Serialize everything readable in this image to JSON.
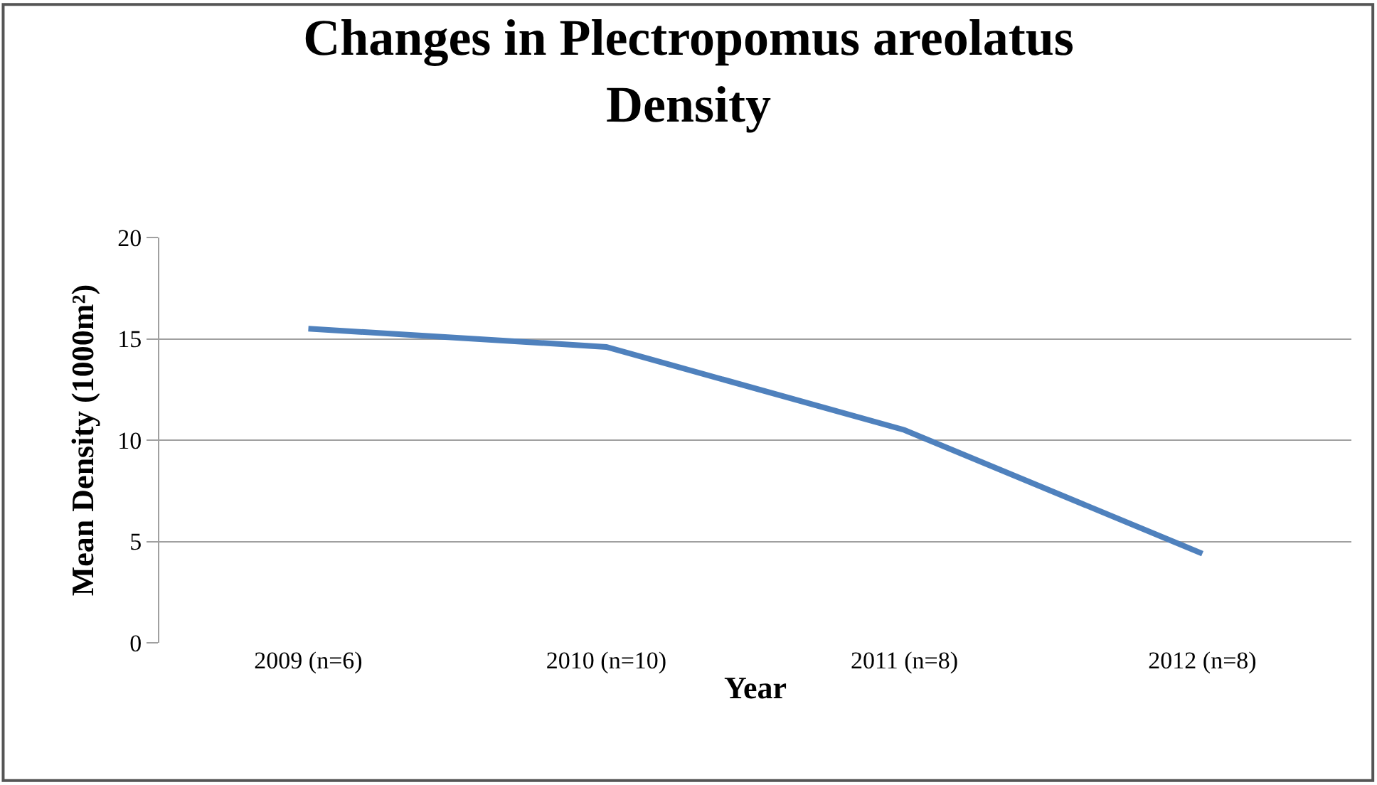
{
  "chart_data": {
    "type": "line",
    "title": "Changes in Plectropomus areolatus Density",
    "xlabel": "Year",
    "ylabel": "Mean Density (1000m²)",
    "categories": [
      "2009 (n=6)",
      "2010 (n=10)",
      "2011 (n=8)",
      "2012 (n=8)"
    ],
    "series": [
      {
        "color": "#4f81bd",
        "values": [
          15.5,
          14.6,
          10.5,
          4.4
        ]
      }
    ],
    "ylim": [
      0,
      20
    ],
    "yticks": [
      0,
      5,
      10,
      15,
      20
    ],
    "grid": "y",
    "marker": "none",
    "line_style": "solid"
  }
}
